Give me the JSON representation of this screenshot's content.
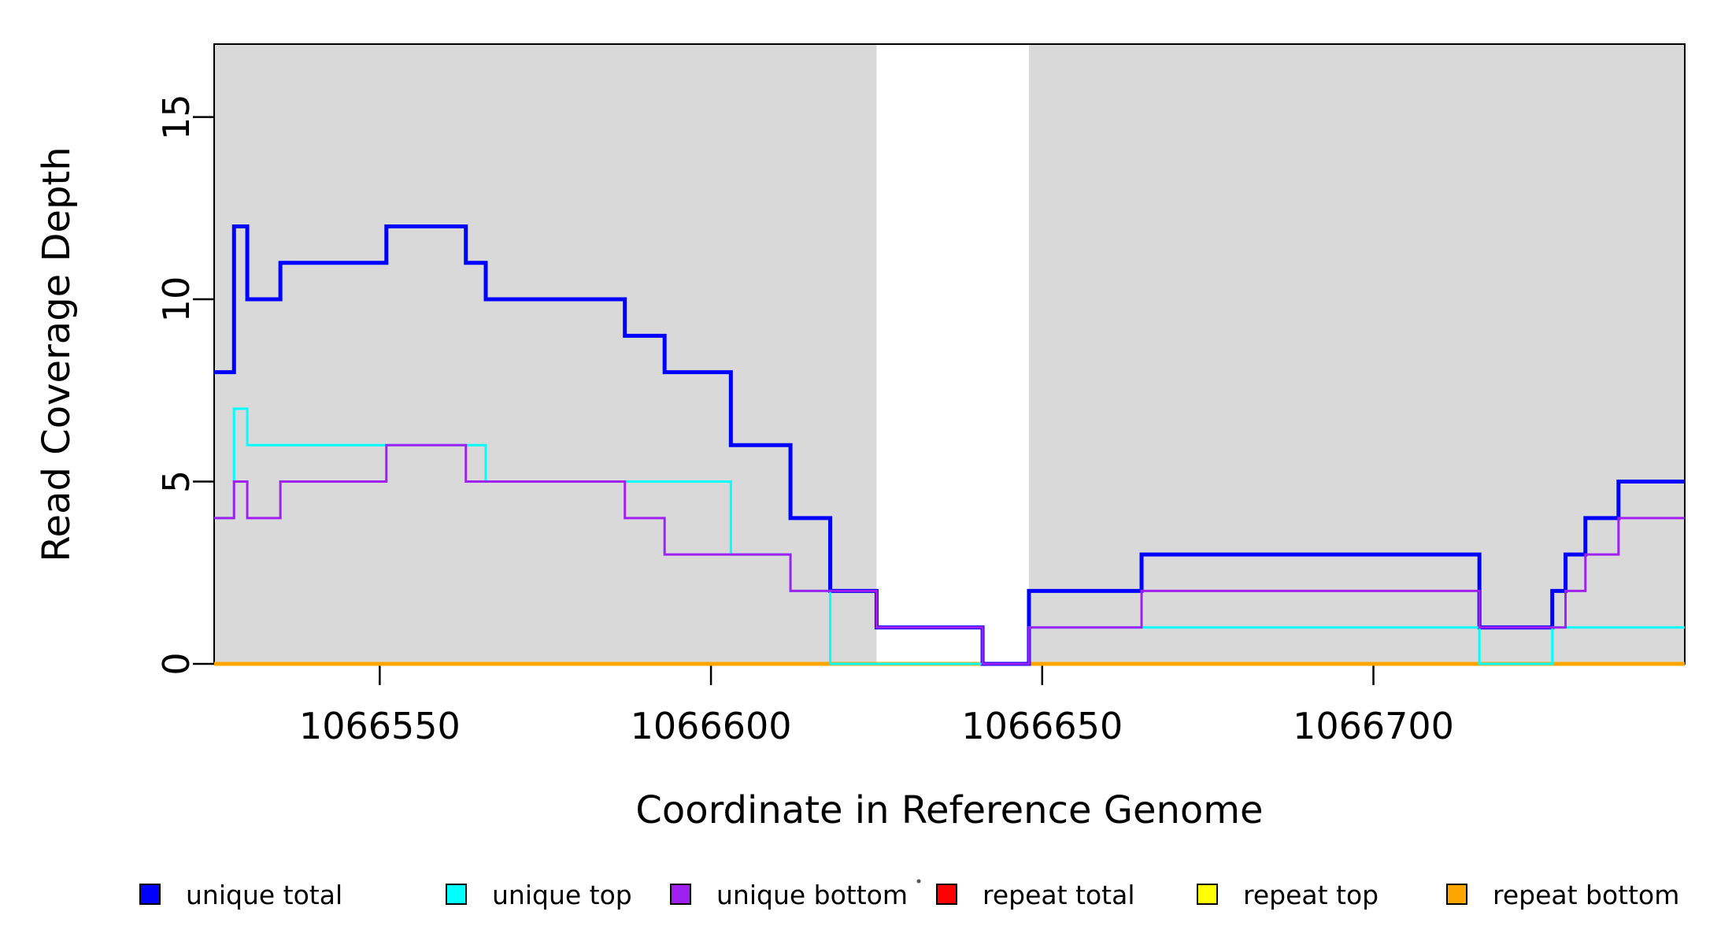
{
  "chart_data": {
    "type": "line",
    "subtype": "step-coverage",
    "title": "",
    "xlabel": "Coordinate in Reference Genome",
    "ylabel": "Read Coverage Depth",
    "xlim": [
      1066525,
      1066747
    ],
    "ylim": [
      0,
      17
    ],
    "xticks": [
      1066550,
      1066600,
      1066650,
      1066700
    ],
    "yticks": [
      0,
      5,
      10,
      15
    ],
    "grid": false,
    "background_color": "#FFFFFF",
    "shaded_region_color": "#D9D9D9",
    "shaded_regions": [
      {
        "x0": 1066525,
        "x1": 1066625
      },
      {
        "x0": 1066648,
        "x1": 1066747
      }
    ],
    "series": [
      {
        "name": "repeat total",
        "color": "#FF0000",
        "line_width": 5,
        "points": [
          [
            1066525,
            0
          ]
        ]
      },
      {
        "name": "repeat top",
        "color": "#FFFF00",
        "line_width": 3.5,
        "points": [
          [
            1066525,
            0
          ]
        ]
      },
      {
        "name": "repeat bottom",
        "color": "#FFA500",
        "line_width": 5,
        "points": [
          [
            1066525,
            0
          ]
        ]
      },
      {
        "name": "unique total",
        "color": "#0000FF",
        "line_width": 5,
        "points": [
          [
            1066525,
            8
          ],
          [
            1066528,
            12
          ],
          [
            1066530,
            10
          ],
          [
            1066535,
            11
          ],
          [
            1066551,
            12
          ],
          [
            1066563,
            11
          ],
          [
            1066566,
            10
          ],
          [
            1066587,
            9
          ],
          [
            1066593,
            8
          ],
          [
            1066603,
            6
          ],
          [
            1066612,
            4
          ],
          [
            1066618,
            2
          ],
          [
            1066625,
            1
          ],
          [
            1066641,
            0
          ],
          [
            1066648,
            2
          ],
          [
            1066665,
            3
          ],
          [
            1066716,
            1
          ],
          [
            1066727,
            2
          ],
          [
            1066729,
            3
          ],
          [
            1066732,
            4
          ],
          [
            1066737,
            5
          ]
        ]
      },
      {
        "name": "unique top",
        "color": "#00FFFF",
        "line_width": 3,
        "points": [
          [
            1066525,
            4
          ],
          [
            1066528,
            7
          ],
          [
            1066530,
            6
          ],
          [
            1066566,
            5
          ],
          [
            1066603,
            3
          ],
          [
            1066612,
            2
          ],
          [
            1066618,
            0
          ],
          [
            1066648,
            1
          ],
          [
            1066716,
            0
          ],
          [
            1066727,
            1
          ]
        ]
      },
      {
        "name": "unique bottom",
        "color": "#A020F0",
        "line_width": 3,
        "points": [
          [
            1066525,
            4
          ],
          [
            1066528,
            5
          ],
          [
            1066530,
            4
          ],
          [
            1066535,
            5
          ],
          [
            1066551,
            6
          ],
          [
            1066563,
            5
          ],
          [
            1066587,
            4
          ],
          [
            1066593,
            3
          ],
          [
            1066612,
            2
          ],
          [
            1066625,
            1
          ],
          [
            1066641,
            0
          ],
          [
            1066648,
            1
          ],
          [
            1066665,
            2
          ],
          [
            1066716,
            1
          ],
          [
            1066729,
            2
          ],
          [
            1066732,
            3
          ],
          [
            1066737,
            4
          ]
        ]
      }
    ],
    "legend": {
      "position": "bottom",
      "items": [
        {
          "label": "unique total",
          "color": "#0000FF"
        },
        {
          "label": "unique top",
          "color": "#00FFFF"
        },
        {
          "label": "unique bottom",
          "color": "#A020F0"
        },
        {
          "label": "repeat total",
          "color": "#FF0000"
        },
        {
          "label": "repeat top",
          "color": "#FFFF00"
        },
        {
          "label": "repeat bottom",
          "color": "#FFA500"
        }
      ]
    }
  }
}
